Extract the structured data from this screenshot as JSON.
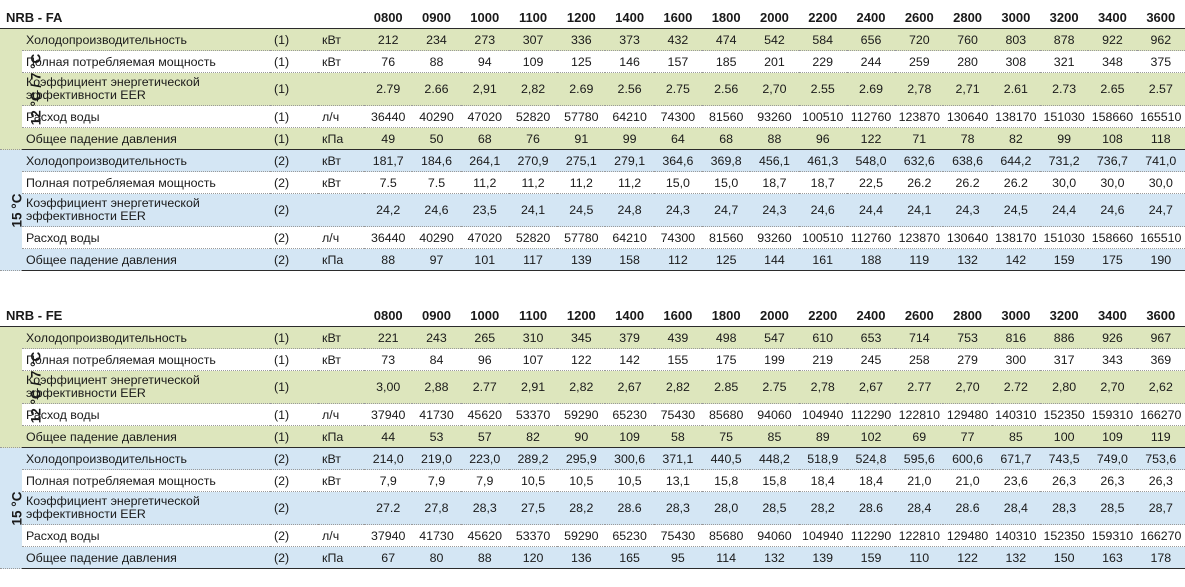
{
  "columns": [
    "0800",
    "0900",
    "1000",
    "1100",
    "1200",
    "1400",
    "1600",
    "1800",
    "2000",
    "2200",
    "2400",
    "2600",
    "2800",
    "3000",
    "3200",
    "3400",
    "3600"
  ],
  "tables": [
    {
      "model": "NRB - FA",
      "groups": [
        {
          "band": "12 °C / 7 °C",
          "color": "#dde6bd",
          "rows": [
            {
              "label": "Холодопроизводительность",
              "cond": "(1)",
              "unit": "кВт",
              "values": [
                "212",
                "234",
                "273",
                "307",
                "336",
                "373",
                "432",
                "474",
                "542",
                "584",
                "656",
                "720",
                "760",
                "803",
                "878",
                "922",
                "962"
              ]
            },
            {
              "label": "Полная потребляемая мощность",
              "cond": "(1)",
              "unit": "кВт",
              "values": [
                "76",
                "88",
                "94",
                "109",
                "125",
                "146",
                "157",
                "185",
                "201",
                "229",
                "244",
                "259",
                "280",
                "308",
                "321",
                "348",
                "375"
              ]
            },
            {
              "label": "Коэффициент энергетической эффективности EER",
              "cond": "(1)",
              "unit": "",
              "values": [
                "2.79",
                "2.66",
                "2,91",
                "2,82",
                "2.69",
                "2.56",
                "2.75",
                "2.56",
                "2,70",
                "2.55",
                "2.69",
                "2,78",
                "2,71",
                "2.61",
                "2.73",
                "2.65",
                "2.57"
              ]
            },
            {
              "label": "Расход воды",
              "cond": "(1)",
              "unit": "л/ч",
              "values": [
                "36440",
                "40290",
                "47020",
                "52820",
                "57780",
                "64210",
                "74300",
                "81560",
                "93260",
                "100510",
                "112760",
                "123870",
                "130640",
                "138170",
                "151030",
                "158660",
                "165510"
              ]
            },
            {
              "label": "Общее падение давления",
              "cond": "(1)",
              "unit": "кПа",
              "values": [
                "49",
                "50",
                "68",
                "76",
                "91",
                "99",
                "64",
                "68",
                "88",
                "96",
                "122",
                "71",
                "78",
                "82",
                "99",
                "108",
                "118"
              ]
            }
          ]
        },
        {
          "band": "15 °C",
          "color": "#d4e6f4",
          "rows": [
            {
              "label": "Холодопроизводительность",
              "cond": "(2)",
              "unit": "кВт",
              "values": [
                "181,7",
                "184,6",
                "264,1",
                "270,9",
                "275,1",
                "279,1",
                "364,6",
                "369,8",
                "456,1",
                "461,3",
                "548,0",
                "632,6",
                "638,6",
                "644,2",
                "731,2",
                "736,7",
                "741,0"
              ]
            },
            {
              "label": "Полная потребляемая мощность",
              "cond": "(2)",
              "unit": "кВт",
              "values": [
                "7.5",
                "7.5",
                "11,2",
                "11,2",
                "11,2",
                "11,2",
                "15,0",
                "15,0",
                "18,7",
                "18,7",
                "22,5",
                "26.2",
                "26.2",
                "26.2",
                "30,0",
                "30,0",
                "30,0"
              ]
            },
            {
              "label": "Коэффициент энергетической эффективности EER",
              "cond": "(2)",
              "unit": "",
              "values": [
                "24,2",
                "24,6",
                "23,5",
                "24,1",
                "24,5",
                "24,8",
                "24,3",
                "24,7",
                "24,3",
                "24,6",
                "24,4",
                "24,1",
                "24,3",
                "24,5",
                "24,4",
                "24,6",
                "24,7"
              ]
            },
            {
              "label": "Расход воды",
              "cond": "(2)",
              "unit": "л/ч",
              "values": [
                "36440",
                "40290",
                "47020",
                "52820",
                "57780",
                "64210",
                "74300",
                "81560",
                "93260",
                "100510",
                "112760",
                "123870",
                "130640",
                "138170",
                "151030",
                "158660",
                "165510"
              ]
            },
            {
              "label": "Общее падение давления",
              "cond": "(2)",
              "unit": "кПа",
              "values": [
                "88",
                "97",
                "101",
                "117",
                "139",
                "158",
                "112",
                "125",
                "144",
                "161",
                "188",
                "119",
                "132",
                "142",
                "159",
                "175",
                "190"
              ]
            }
          ]
        }
      ]
    },
    {
      "model": "NRB - FE",
      "groups": [
        {
          "band": "12 °C / 7 °C",
          "color": "#dde6bd",
          "rows": [
            {
              "label": "Холодопроизводительность",
              "cond": "(1)",
              "unit": "кВт",
              "values": [
                "221",
                "243",
                "265",
                "310",
                "345",
                "379",
                "439",
                "498",
                "547",
                "610",
                "653",
                "714",
                "753",
                "816",
                "886",
                "926",
                "967"
              ]
            },
            {
              "label": "Полная потребляемая мощность",
              "cond": "(1)",
              "unit": "кВт",
              "values": [
                "73",
                "84",
                "96",
                "107",
                "122",
                "142",
                "155",
                "175",
                "199",
                "219",
                "245",
                "258",
                "279",
                "300",
                "317",
                "343",
                "369"
              ]
            },
            {
              "label": "Коэффициент энергетической эффективности EER",
              "cond": "(1)",
              "unit": "",
              "values": [
                "3,00",
                "2,88",
                "2.77",
                "2,91",
                "2,82",
                "2,67",
                "2,82",
                "2.85",
                "2.75",
                "2,78",
                "2,67",
                "2.77",
                "2,70",
                "2.72",
                "2,80",
                "2,70",
                "2,62"
              ]
            },
            {
              "label": "Расход воды",
              "cond": "(1)",
              "unit": "л/ч",
              "values": [
                "37940",
                "41730",
                "45620",
                "53370",
                "59290",
                "65230",
                "75430",
                "85680",
                "94060",
                "104940",
                "112290",
                "122810",
                "129480",
                "140310",
                "152350",
                "159310",
                "166270"
              ]
            },
            {
              "label": "Общее падение давления",
              "cond": "(1)",
              "unit": "кПа",
              "values": [
                "44",
                "53",
                "57",
                "82",
                "90",
                "109",
                "58",
                "75",
                "85",
                "89",
                "102",
                "69",
                "77",
                "85",
                "100",
                "109",
                "119"
              ]
            }
          ]
        },
        {
          "band": "15 °C",
          "color": "#d4e6f4",
          "rows": [
            {
              "label": "Холодопроизводительность",
              "cond": "(2)",
              "unit": "кВт",
              "values": [
                "214,0",
                "219,0",
                "223,0",
                "289,2",
                "295,9",
                "300,6",
                "371,1",
                "440,5",
                "448,2",
                "518,9",
                "524,8",
                "595,6",
                "600,6",
                "671,7",
                "743,5",
                "749,0",
                "753,6"
              ]
            },
            {
              "label": "Полная потребляемая мощность",
              "cond": "(2)",
              "unit": "кВт",
              "values": [
                "7,9",
                "7,9",
                "7,9",
                "10,5",
                "10,5",
                "10,5",
                "13,1",
                "15,8",
                "15,8",
                "18,4",
                "18,4",
                "21,0",
                "21,0",
                "23,6",
                "26,3",
                "26,3",
                "26,3"
              ]
            },
            {
              "label": "Коэффициент энергетической эффективности EER",
              "cond": "(2)",
              "unit": "",
              "values": [
                "27.2",
                "27,8",
                "28,3",
                "27,5",
                "28,2",
                "28.6",
                "28,3",
                "28,0",
                "28,5",
                "28,2",
                "28.6",
                "28,4",
                "28.6",
                "28,4",
                "28,3",
                "28,5",
                "28,7"
              ]
            },
            {
              "label": "Расход воды",
              "cond": "(2)",
              "unit": "л/ч",
              "values": [
                "37940",
                "41730",
                "45620",
                "53370",
                "59290",
                "65230",
                "75430",
                "85680",
                "94060",
                "104940",
                "112290",
                "122810",
                "129480",
                "140310",
                "152350",
                "159310",
                "166270"
              ]
            },
            {
              "label": "Общее падение давления",
              "cond": "(2)",
              "unit": "кПа",
              "values": [
                "67",
                "80",
                "88",
                "120",
                "136",
                "165",
                "95",
                "114",
                "132",
                "139",
                "159",
                "110",
                "122",
                "132",
                "150",
                "163",
                "178"
              ]
            }
          ]
        }
      ]
    }
  ]
}
